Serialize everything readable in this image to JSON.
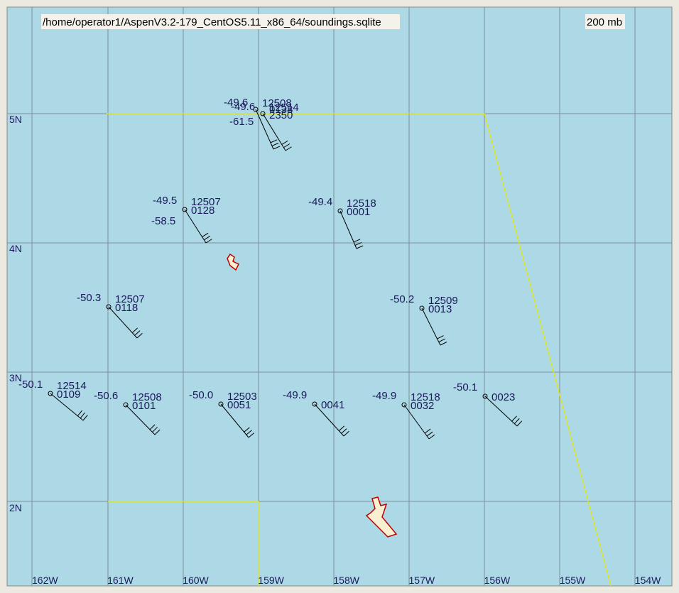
{
  "header": {
    "path": "/home/operator1/AspenV3.2-179_CentOS5.11_x86_64/soundings.sqlite",
    "level": "200 mb"
  },
  "latitudes": [
    "5N",
    "4N",
    "3N",
    "2N"
  ],
  "longitudes": [
    "162W",
    "161W",
    "160W",
    "159W",
    "158W",
    "157W",
    "156W",
    "155W",
    "154W"
  ],
  "stations": [
    {
      "temp": "-49.6",
      "id": "12508"
    },
    {
      "temp": "-49.6",
      "id": "12514",
      "time": "0138",
      "dew": "-61.5",
      "time2": "2350"
    },
    {
      "temp": "-49.5",
      "id": "12507",
      "time": "0128",
      "dew": "-58.5"
    },
    {
      "temp": "-49.4",
      "id": "12518",
      "time": "0001"
    },
    {
      "temp": "-50.3",
      "id": "12507",
      "time": "0118"
    },
    {
      "temp": "-50.2",
      "id": "12509",
      "time": "0013"
    },
    {
      "temp": "-50.1",
      "id": "12514",
      "time": "0109"
    },
    {
      "temp": "-50.6",
      "id": "12508",
      "time": "0101"
    },
    {
      "temp": "-50.0",
      "id": "12503",
      "time": "0051"
    },
    {
      "temp": "-49.9",
      "time": "0041"
    },
    {
      "temp": "-49.9",
      "id": "12518",
      "time": "0032"
    },
    {
      "temp": "-50.1",
      "time": "0023"
    }
  ]
}
